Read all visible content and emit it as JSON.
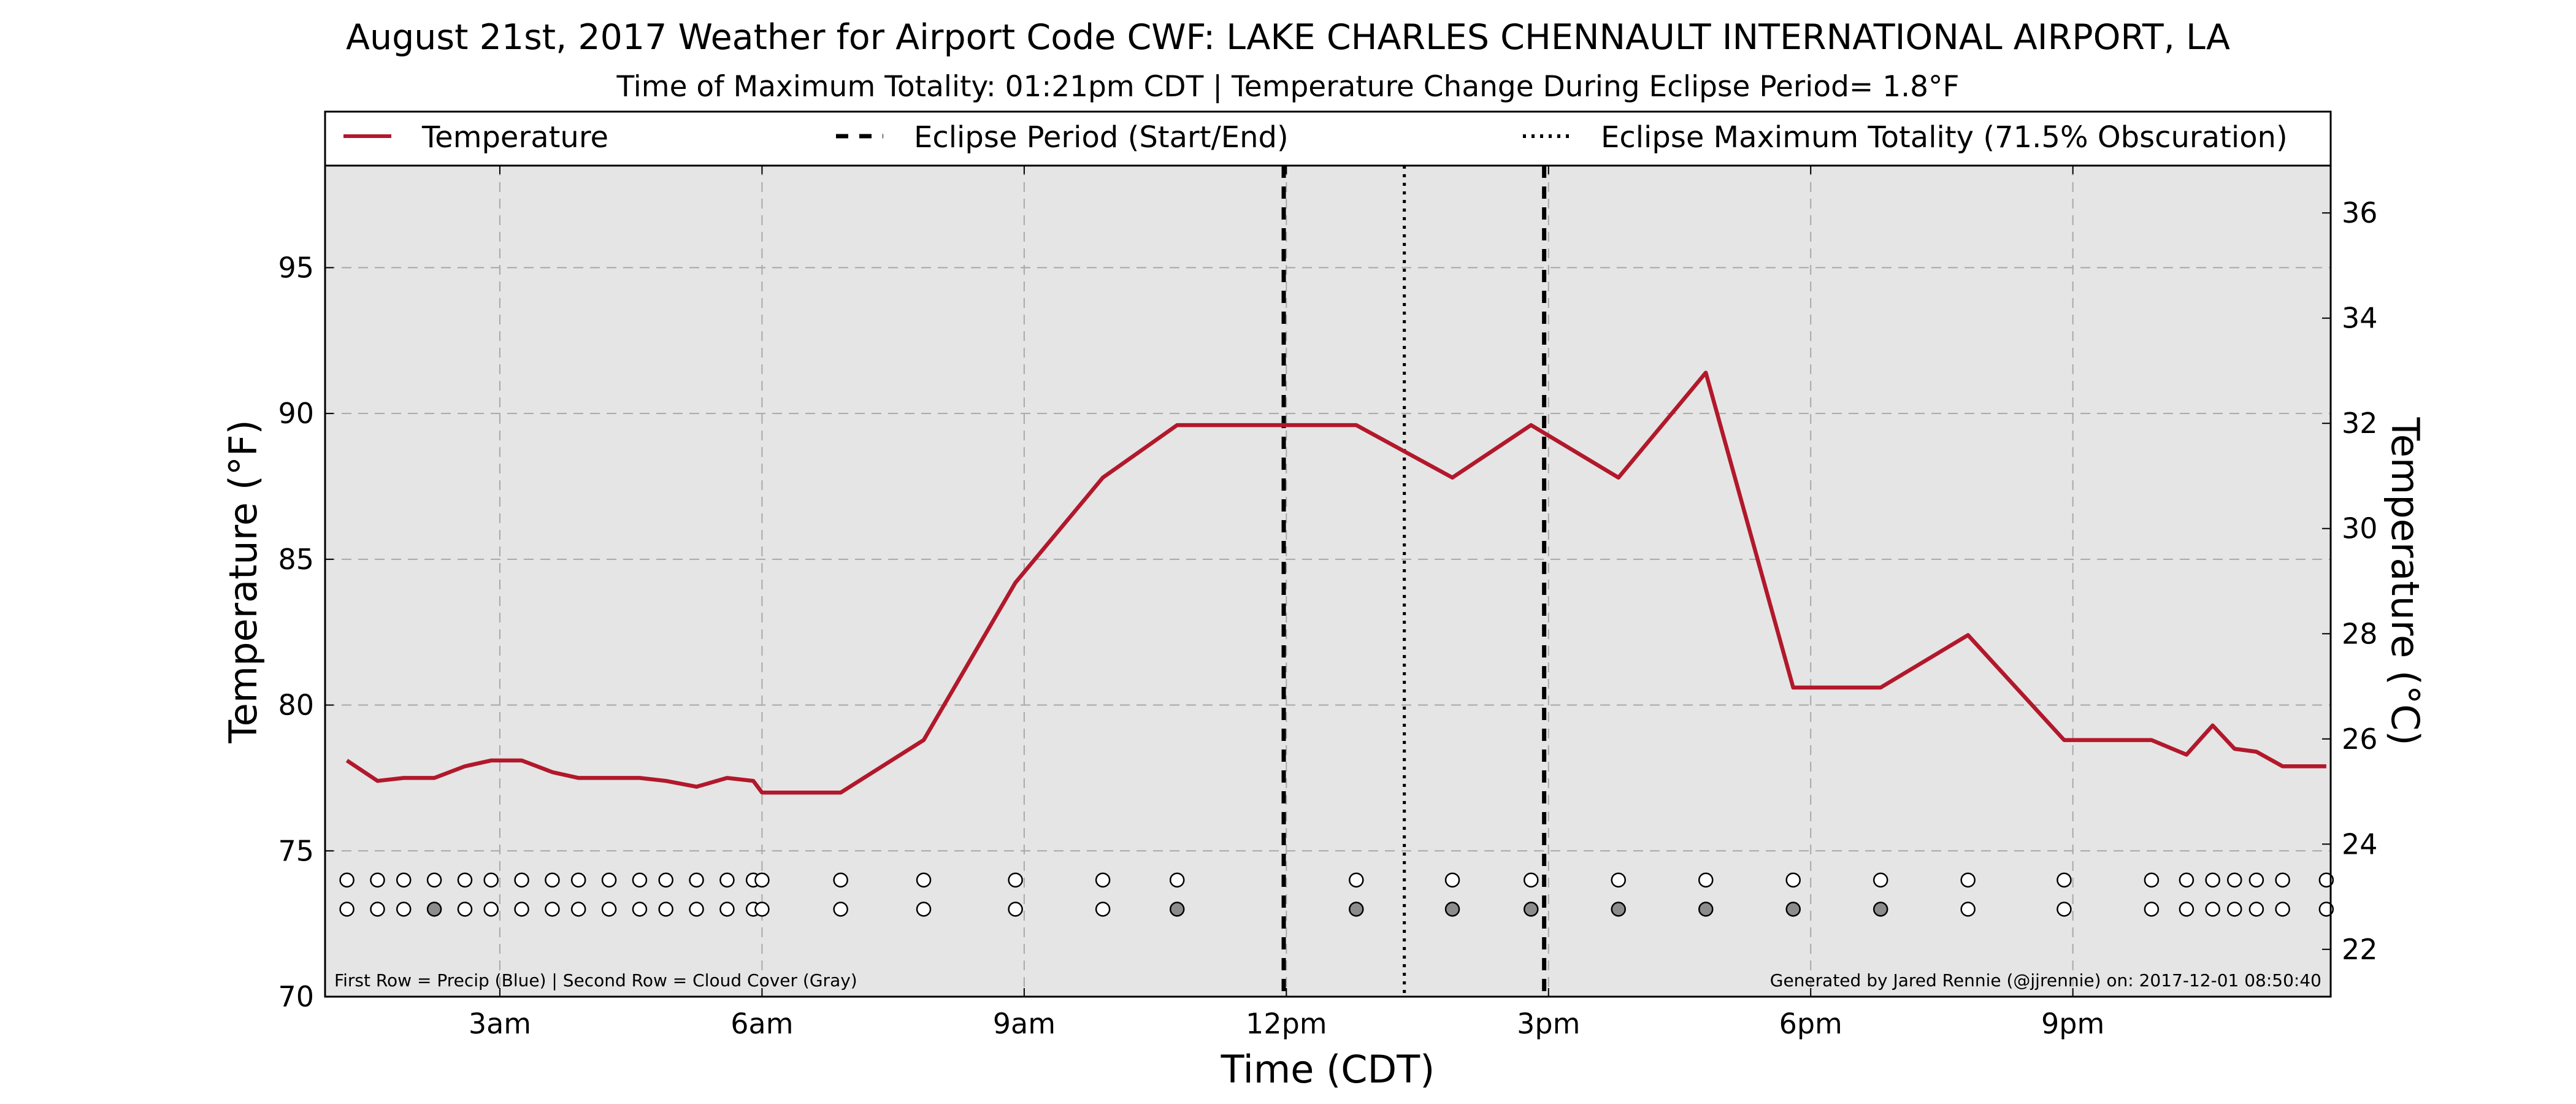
{
  "chart_data": {
    "type": "line",
    "title": "August 21st, 2017 Weather for Airport Code CWF: LAKE CHARLES CHENNAULT INTERNATIONAL AIRPORT, LA",
    "subtitle": "Time of Maximum Totality: 01:21pm CDT | Temperature Change During Eclipse Period= 1.8°F",
    "xlabel": "Time (CDT)",
    "ylabel": "Temperature (°F)",
    "ylabel_right": "Temperature (°C)",
    "xlim": [
      1.0,
      23.95
    ],
    "ylim": [
      70,
      98.5
    ],
    "ylim_right_celsius": [
      21.1,
      36.9
    ],
    "x_unit": "hour of day (CDT)",
    "x_ticks": [
      {
        "x": 3,
        "label": "3am"
      },
      {
        "x": 6,
        "label": "6am"
      },
      {
        "x": 9,
        "label": "9am"
      },
      {
        "x": 12,
        "label": "12pm"
      },
      {
        "x": 15,
        "label": "3pm"
      },
      {
        "x": 18,
        "label": "6pm"
      },
      {
        "x": 21,
        "label": "9pm"
      }
    ],
    "y_ticks": [
      70,
      75,
      80,
      85,
      90,
      95
    ],
    "y_ticks_right": [
      22,
      24,
      26,
      28,
      30,
      32,
      34,
      36
    ],
    "grid": true,
    "legend_placement": "top, full width",
    "legend": [
      {
        "label": "Temperature",
        "style": "solid"
      },
      {
        "label": "Eclipse Period (Start/End)",
        "style": "dashed"
      },
      {
        "label": "Eclipse Maximum Totality (71.5% Obscuration)",
        "style": "dotted"
      }
    ],
    "colors": {
      "temperature": "#b2182b",
      "plot_background": "#e5e5e5",
      "cloud_cover_filled": "#8c8c8c"
    },
    "series": [
      {
        "name": "Temperature",
        "x": [
          1.25,
          1.6,
          1.9,
          2.25,
          2.6,
          2.9,
          3.25,
          3.6,
          3.9,
          4.25,
          4.6,
          4.9,
          5.25,
          5.6,
          5.9,
          6.0,
          6.9,
          7.85,
          8.9,
          9.9,
          10.75,
          11.8,
          12.8,
          13.9,
          14.8,
          15.8,
          16.8,
          17.8,
          18.8,
          19.8,
          20.9,
          21.9,
          22.3,
          22.6,
          22.85,
          23.1,
          23.4,
          23.9
        ],
        "values": [
          78.1,
          77.4,
          77.5,
          77.5,
          77.9,
          78.1,
          78.1,
          77.7,
          77.5,
          77.5,
          77.5,
          77.4,
          77.2,
          77.5,
          77.4,
          77.0,
          77.0,
          78.8,
          84.2,
          87.8,
          89.6,
          89.6,
          89.6,
          87.8,
          89.6,
          87.8,
          91.4,
          80.6,
          80.6,
          82.4,
          78.8,
          78.8,
          78.3,
          79.3,
          78.5,
          78.4,
          77.9,
          77.9
        ]
      }
    ],
    "eclipse_start": 11.97,
    "eclipse_end": 14.95,
    "eclipse_max": 13.35,
    "circle_rows": {
      "x": [
        1.25,
        1.6,
        1.9,
        2.25,
        2.6,
        2.9,
        3.25,
        3.6,
        3.9,
        4.25,
        4.6,
        4.9,
        5.25,
        5.6,
        5.9,
        6.0,
        6.9,
        7.85,
        8.9,
        9.9,
        10.75,
        12.8,
        13.9,
        14.8,
        15.8,
        16.8,
        17.8,
        18.8,
        19.8,
        20.9,
        21.9,
        22.3,
        22.6,
        22.85,
        23.1,
        23.4,
        23.9
      ],
      "precip_y": 74.0,
      "cloud_y": 73.0,
      "cloud_filled": [
        false,
        false,
        false,
        true,
        false,
        false,
        false,
        false,
        false,
        false,
        false,
        false,
        false,
        false,
        false,
        false,
        false,
        false,
        false,
        false,
        true,
        true,
        true,
        true,
        true,
        true,
        true,
        true,
        false,
        false,
        false,
        false,
        false,
        false,
        false,
        false,
        false
      ]
    },
    "note_left": "First Row = Precip (Blue) | Second Row = Cloud Cover (Gray)",
    "note_right": "Generated by Jared Rennie (@jjrennie) on: 2017-12-01 08:50:40"
  }
}
